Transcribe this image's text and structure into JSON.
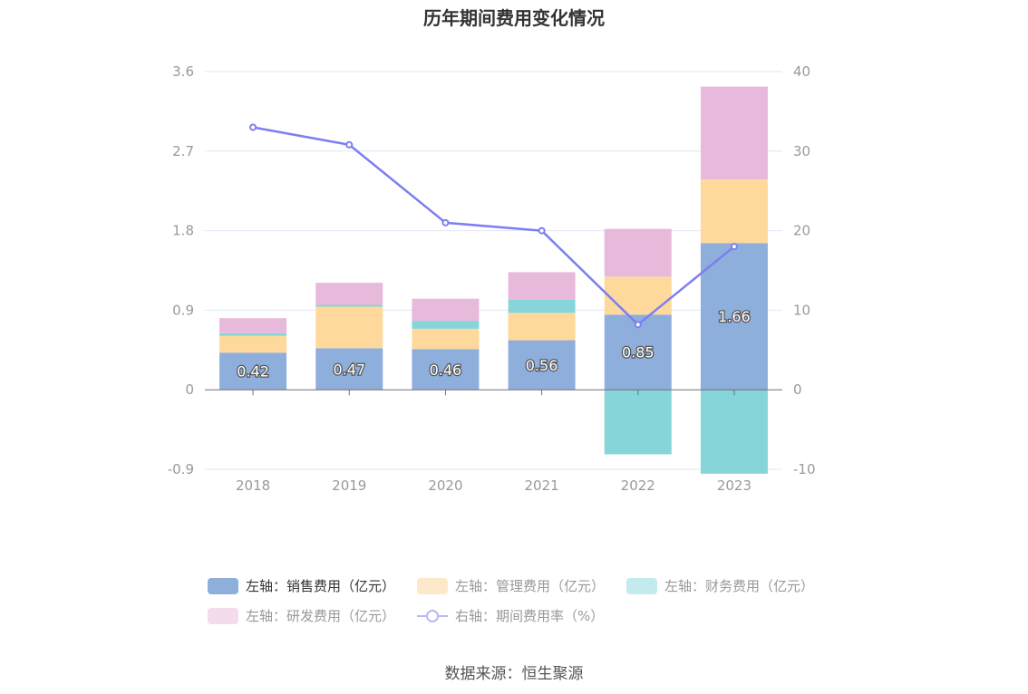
{
  "title": "历年期间费用变化情况",
  "source": "数据来源：恒生聚源",
  "chart_data": {
    "type": "bar",
    "stacked": true,
    "categories": [
      "2018",
      "2019",
      "2020",
      "2021",
      "2022",
      "2023"
    ],
    "left_axis": {
      "min": -0.9,
      "max": 3.6,
      "ticks": [
        "3.6",
        "2.7",
        "1.8",
        "0.9",
        "0",
        "-0.9"
      ]
    },
    "right_axis": {
      "min": -10,
      "max": 40,
      "ticks": [
        "40",
        "30",
        "20",
        "10",
        "0",
        "-10"
      ]
    },
    "series": [
      {
        "name": "左轴：销售费用（亿元）",
        "axis": "left",
        "color": "#8eaedc",
        "values": [
          0.42,
          0.47,
          0.46,
          0.56,
          0.85,
          1.66
        ],
        "labels": [
          "0.42",
          "0.47",
          "0.46",
          "0.56",
          "0.85",
          "1.66"
        ]
      },
      {
        "name": "左轴：管理费用（亿元）",
        "axis": "left",
        "color": "#fed99b",
        "values": [
          0.19,
          0.47,
          0.23,
          0.31,
          0.43,
          0.72
        ]
      },
      {
        "name": "左轴：财务费用（亿元）",
        "axis": "left",
        "color": "#86d5d8",
        "values": [
          0.03,
          0.02,
          0.09,
          0.15,
          -0.73,
          -0.95
        ]
      },
      {
        "name": "左轴：研发费用（亿元）",
        "axis": "left",
        "color": "#e7b9da",
        "values": [
          0.17,
          0.25,
          0.25,
          0.31,
          0.54,
          1.05
        ]
      },
      {
        "name": "右轴：期间费用率（%）",
        "axis": "right",
        "type": "line",
        "color": "#7b7ff0",
        "values": [
          33.0,
          30.8,
          21.0,
          20.0,
          8.2,
          18.0
        ]
      }
    ],
    "grid": true,
    "legend_position": "bottom"
  }
}
